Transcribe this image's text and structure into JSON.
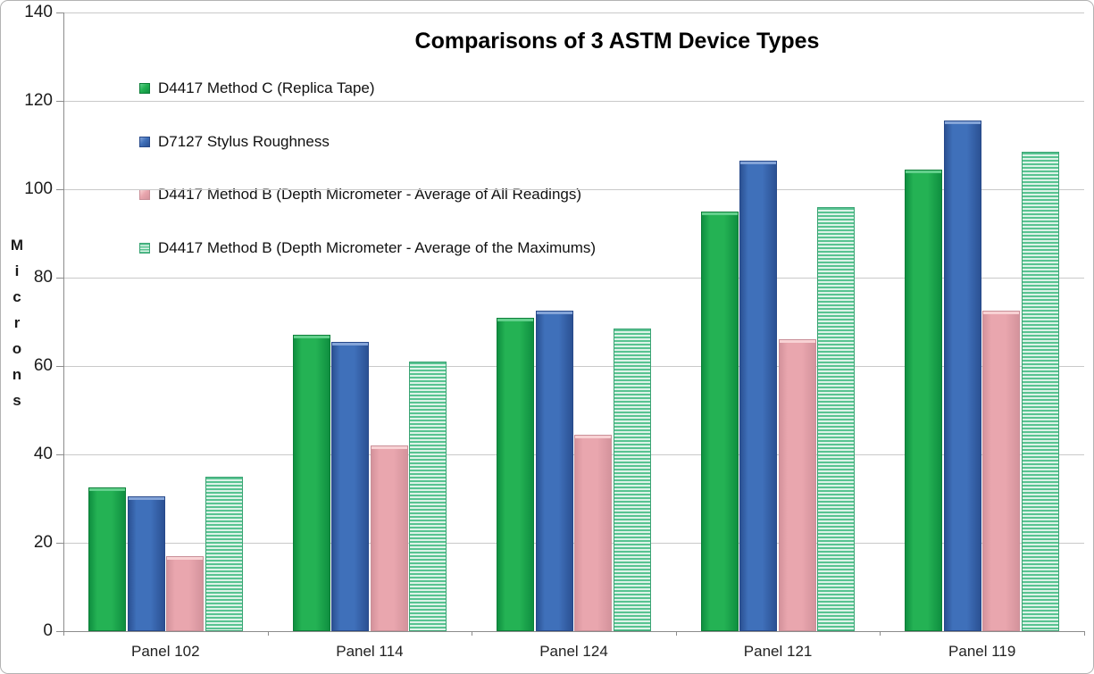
{
  "chart_data": {
    "type": "bar",
    "title": "Comparisons of 3 ASTM Device Types",
    "ylabel": "Microns",
    "xlabel": "",
    "categories": [
      "Panel 102",
      "Panel 114",
      "Panel 124",
      "Panel 121",
      "Panel 119"
    ],
    "series": [
      {
        "name": "D4417 Method C (Replica Tape)",
        "style": "solid",
        "values": [
          32.5,
          67,
          71,
          95,
          104.5
        ],
        "colors": {
          "face": "#24b254",
          "shade": "#0f8f40",
          "highlight": "#63d08c",
          "border": "#0c7e38"
        }
      },
      {
        "name": "D7127 Stylus Roughness",
        "style": "solid",
        "values": [
          30.5,
          65.5,
          72.5,
          106.5,
          115.5
        ],
        "colors": {
          "face": "#3f70ba",
          "shade": "#2b5193",
          "highlight": "#84a4d8",
          "border": "#27498a"
        }
      },
      {
        "name": "D4417 Method B (Depth Micrometer - Average of All Readings)",
        "style": "solid",
        "values": [
          17,
          42,
          44.5,
          66,
          72.5
        ],
        "colors": {
          "face": "#e9a6ae",
          "shade": "#d4939c",
          "highlight": "#f8d2d4",
          "border": "#c98f98"
        }
      },
      {
        "name": "D4417 Method B (Depth Micrometer - Average of the Maximums)",
        "style": "striped",
        "values": [
          35,
          61,
          68.5,
          96,
          108.5
        ],
        "colors": {
          "stripe": "#58c391",
          "bg": "#ddf3e8",
          "border": "#3ba474"
        }
      }
    ],
    "ylim": [
      0,
      140
    ],
    "yticks": [
      0,
      20,
      40,
      60,
      80,
      100,
      120,
      140
    ],
    "grid": true,
    "legend_position": "upper-left-inside",
    "axis_color": "#8c8c8c",
    "gridline_color": "#c9c9c9"
  }
}
